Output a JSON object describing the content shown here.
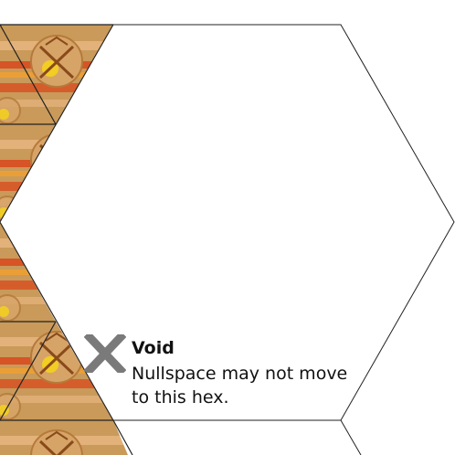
{
  "hex": {
    "type": "void",
    "icon": "x-cross-icon",
    "title": "Void",
    "description": "Nullspace may not move to this hex."
  },
  "neighbor_tiles": {
    "icon": "crossed-swords-emblem-icon",
    "colors": {
      "base": "#c99a5a",
      "stripe_red": "#d9481c",
      "stripe_orange": "#f0a030",
      "glow_yellow": "#f5d21c"
    }
  },
  "colors": {
    "hex_border": "#222222",
    "void_icon": "#7a7a7a",
    "text": "#111111"
  }
}
